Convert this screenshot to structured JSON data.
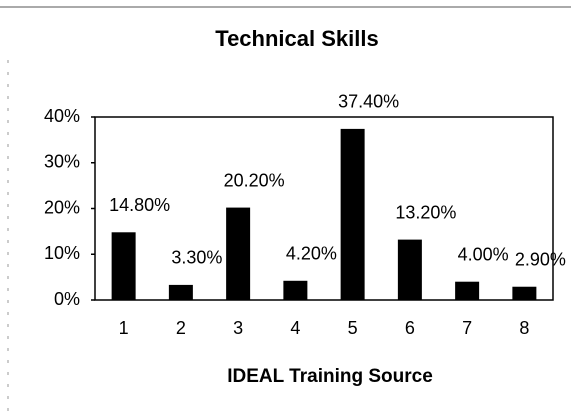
{
  "chart_data": {
    "type": "bar",
    "title": "Technical Skills",
    "x_label": "IDEAL Training Source",
    "categories": [
      "1",
      "2",
      "3",
      "4",
      "5",
      "6",
      "7",
      "8"
    ],
    "values": [
      14.8,
      3.3,
      20.2,
      4.2,
      37.4,
      13.2,
      4.0,
      2.9
    ],
    "value_labels": [
      "14.80%",
      "3.30%",
      "20.20%",
      "4.20%",
      "37.40%",
      "13.20%",
      "4.00%",
      "2.90%"
    ],
    "color": "#000000",
    "ylim": [
      0,
      40
    ],
    "yticks": [
      {
        "value": 0,
        "label": "0%"
      },
      {
        "value": 10,
        "label": "10%"
      },
      {
        "value": 20,
        "label": "20%"
      },
      {
        "value": 30,
        "label": "30%"
      },
      {
        "value": 40,
        "label": "40%"
      }
    ],
    "grid": false
  }
}
